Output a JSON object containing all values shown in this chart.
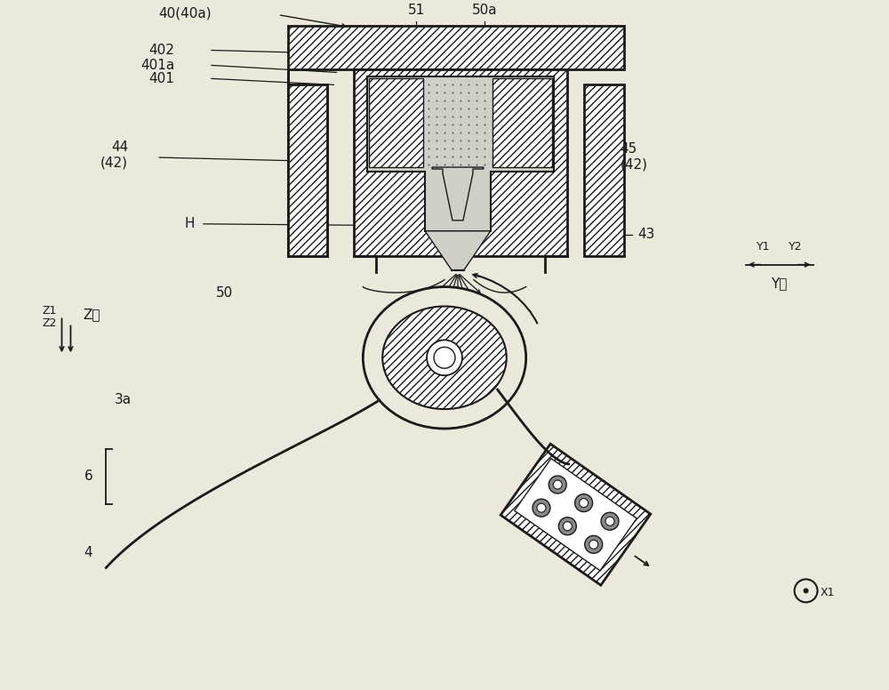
{
  "bg_color": "#ede8dc",
  "line_color": "#1a1a1a",
  "font_size": 11,
  "small_font": 9,
  "labels": {
    "40_40a": "40(40a)",
    "51": "51",
    "50a": "50a",
    "402": "402",
    "401a": "401a",
    "401": "401",
    "44_42_L": "44\n(42)",
    "45_42_R": "45\n(42)",
    "H": "H",
    "43": "43",
    "50": "50",
    "Z1": "Z1",
    "Z2": "Z2",
    "Zaxis": "Z轴",
    "Y1": "Y1",
    "Y2": "Y2",
    "Yaxis": "Y轴",
    "X1": "X1",
    "3a": "3a",
    "6": "6",
    "4": "4"
  }
}
